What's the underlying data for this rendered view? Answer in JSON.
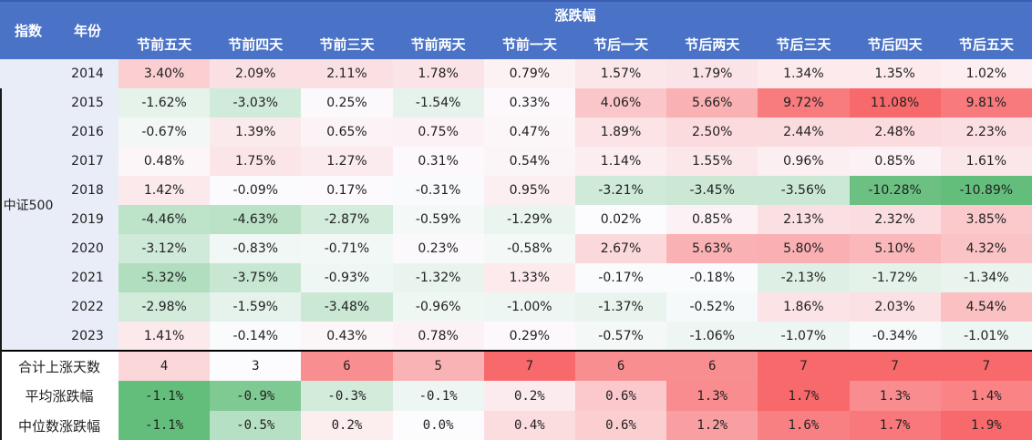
{
  "chart_data": {
    "type": "heatmap",
    "title": "涨跌幅",
    "index_label": "指数",
    "year_label": "年份",
    "index_name": "中证500",
    "columns": [
      "节前五天",
      "节前四天",
      "节前三天",
      "节前两天",
      "节前一天",
      "节后一天",
      "节后两天",
      "节后三天",
      "节后四天",
      "节后五天"
    ],
    "rows": [
      {
        "year": "2014",
        "values": [
          3.4,
          2.09,
          2.11,
          1.78,
          0.79,
          1.57,
          1.79,
          1.34,
          1.35,
          1.02
        ]
      },
      {
        "year": "2015",
        "values": [
          -1.62,
          -3.03,
          0.25,
          -1.54,
          0.33,
          4.06,
          5.66,
          9.72,
          11.08,
          9.81
        ]
      },
      {
        "year": "2016",
        "values": [
          -0.67,
          1.39,
          0.65,
          0.75,
          0.47,
          1.89,
          2.5,
          2.44,
          2.48,
          2.23
        ]
      },
      {
        "year": "2017",
        "values": [
          0.48,
          1.75,
          1.27,
          0.31,
          0.54,
          1.14,
          1.55,
          0.96,
          0.85,
          1.61
        ]
      },
      {
        "year": "2018",
        "values": [
          1.42,
          -0.09,
          0.17,
          -0.31,
          0.95,
          -3.21,
          -3.45,
          -3.56,
          -10.28,
          -10.89
        ]
      },
      {
        "year": "2019",
        "values": [
          -4.46,
          -4.63,
          -2.87,
          -0.59,
          -1.29,
          0.02,
          0.85,
          2.13,
          2.32,
          3.85
        ]
      },
      {
        "year": "2020",
        "values": [
          -3.12,
          -0.83,
          -0.71,
          0.23,
          -0.58,
          2.67,
          5.63,
          5.8,
          5.1,
          4.32
        ]
      },
      {
        "year": "2021",
        "values": [
          -5.32,
          -3.75,
          -0.93,
          -1.32,
          1.33,
          -0.17,
          -0.18,
          -2.13,
          -1.72,
          -1.34
        ]
      },
      {
        "year": "2022",
        "values": [
          -2.98,
          -1.59,
          -3.48,
          -0.96,
          -1.0,
          -1.37,
          -0.52,
          1.86,
          2.03,
          4.54
        ]
      },
      {
        "year": "2023",
        "values": [
          1.41,
          -0.14,
          0.43,
          0.78,
          0.29,
          -0.57,
          -1.06,
          -1.07,
          -0.34,
          -1.01
        ]
      }
    ],
    "summary_rows": [
      {
        "label": "合计上涨天数",
        "format": "int",
        "values": [
          4,
          3,
          6,
          5,
          7,
          6,
          6,
          7,
          7,
          7
        ]
      },
      {
        "label": "平均涨跌幅",
        "format": "pct1",
        "values": [
          -1.1,
          -0.9,
          -0.3,
          -0.1,
          0.2,
          0.6,
          1.3,
          1.7,
          1.3,
          1.4
        ]
      },
      {
        "label": "中位数涨跌幅",
        "format": "pct1",
        "values": [
          -1.1,
          -0.5,
          0.2,
          0.0,
          0.4,
          0.6,
          1.2,
          1.6,
          1.7,
          1.9
        ]
      }
    ],
    "color_scale": {
      "positive_end": "#F8696B",
      "negative_end": "#63BE7B",
      "neutral": "#FCFCFF",
      "domain_min": -10.89,
      "domain_max": 11.08
    },
    "colors": {
      "header_bg": "#4A72C6",
      "header_text": "#FFFFFF",
      "label_bg": "#E9EDF8",
      "text": "#212121",
      "separator": "#000000",
      "top_border": "#3A5EB2"
    }
  }
}
